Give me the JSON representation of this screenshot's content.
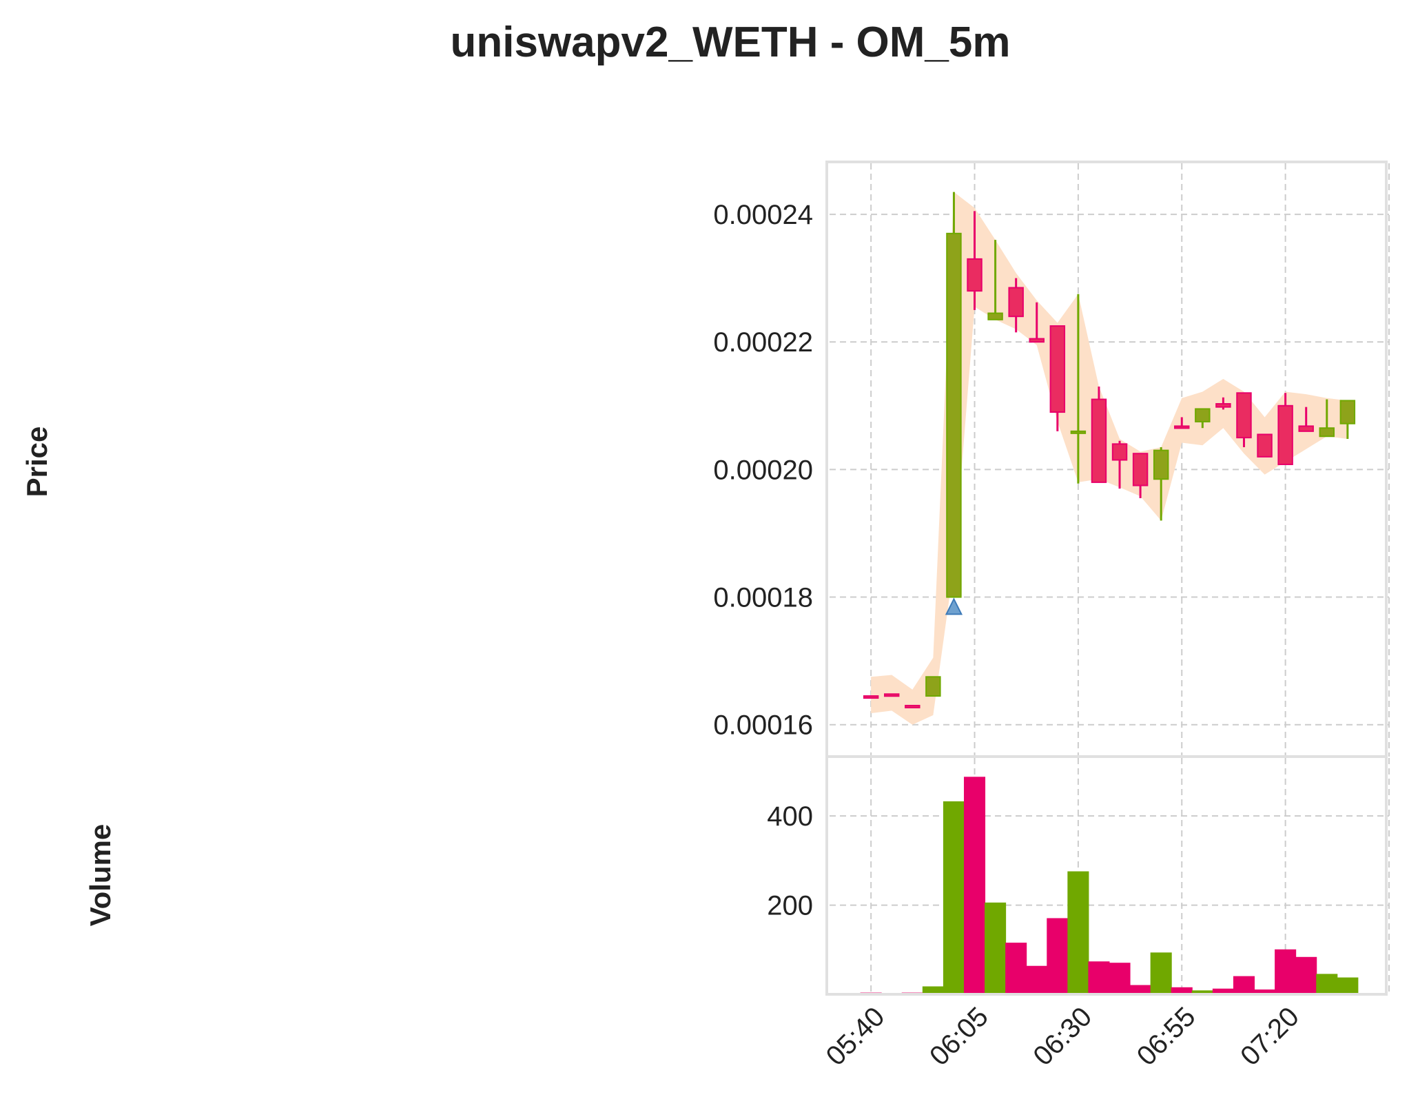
{
  "chart_data": {
    "type": "candlestick",
    "title": "uniswapv2_WETH - OM_5m",
    "colors": {
      "up": "#70a800",
      "up_body": "#8ea31a",
      "down": "#e8006a",
      "down_body": "#ea2c61",
      "band": "#fde0c8",
      "marker": "#6fa1cf",
      "grid": "#cccccc",
      "frame": "#e0e0e0"
    },
    "price_panel": {
      "ylabel": "Price",
      "ylim": [
        0.000155,
        0.000248
      ],
      "yticks": [
        0.00016,
        0.00018,
        0.0002,
        0.00022,
        0.00024
      ],
      "ytick_labels": [
        "0.00016",
        "0.00018",
        "0.00020",
        "0.00022",
        "0.00024"
      ]
    },
    "volume_panel": {
      "ylabel": "Volume",
      "ylim": [
        0,
        530
      ],
      "yticks": [
        200,
        400
      ],
      "ytick_labels": [
        "200",
        "400"
      ]
    },
    "xlim": [
      "05:30",
      "07:45"
    ],
    "xticks": [
      "05:40",
      "06:05",
      "06:30",
      "06:55",
      "07:20",
      "07:45"
    ],
    "xtick_labels": [
      "05:40",
      "06:05",
      "06:30",
      "06:55",
      "07:20",
      ""
    ],
    "candles": [
      {
        "time": "05:40",
        "open": 0.0001645,
        "high": 0.0001645,
        "low": 0.0001645,
        "close": 0.0001645,
        "volume": 3,
        "direction": "down"
      },
      {
        "time": "05:45",
        "open": 0.0001648,
        "high": 0.0001648,
        "low": 0.0001648,
        "close": 0.0001648,
        "volume": 0,
        "direction": "down"
      },
      {
        "time": "05:50",
        "open": 0.000163,
        "high": 0.000163,
        "low": 0.000163,
        "close": 0.000163,
        "volume": 3,
        "direction": "down"
      },
      {
        "time": "05:55",
        "open": 0.0001645,
        "high": 0.0001675,
        "low": 0.0001645,
        "close": 0.0001675,
        "volume": 17,
        "direction": "up"
      },
      {
        "time": "06:00",
        "open": 0.00018,
        "high": 0.0002435,
        "low": 0.00018,
        "close": 0.000237,
        "volume": 432,
        "direction": "up"
      },
      {
        "time": "06:05",
        "open": 0.000233,
        "high": 0.0002405,
        "low": 0.000225,
        "close": 0.000228,
        "volume": 487,
        "direction": "down"
      },
      {
        "time": "06:10",
        "open": 0.0002235,
        "high": 0.000236,
        "low": 0.0002235,
        "close": 0.0002245,
        "volume": 205,
        "direction": "up"
      },
      {
        "time": "06:15",
        "open": 0.0002285,
        "high": 0.00023,
        "low": 0.0002215,
        "close": 0.000224,
        "volume": 115,
        "direction": "down"
      },
      {
        "time": "06:20",
        "open": 0.0002205,
        "high": 0.0002262,
        "low": 0.00022,
        "close": 0.00022,
        "volume": 63,
        "direction": "down"
      },
      {
        "time": "06:25",
        "open": 0.0002225,
        "high": 0.0002225,
        "low": 0.000206,
        "close": 0.000209,
        "volume": 170,
        "direction": "down"
      },
      {
        "time": "06:30",
        "open": 0.000206,
        "high": 0.0002275,
        "low": 0.0001978,
        "close": 0.000206,
        "volume": 275,
        "direction": "up"
      },
      {
        "time": "06:35",
        "open": 0.000211,
        "high": 0.000213,
        "low": 0.000198,
        "close": 0.000198,
        "volume": 73,
        "direction": "down"
      },
      {
        "time": "06:40",
        "open": 0.000204,
        "high": 0.0002045,
        "low": 0.000197,
        "close": 0.0002015,
        "volume": 70,
        "direction": "down"
      },
      {
        "time": "06:45",
        "open": 0.0002025,
        "high": 0.0002025,
        "low": 0.0001955,
        "close": 0.0001975,
        "volume": 20,
        "direction": "down"
      },
      {
        "time": "06:50",
        "open": 0.0001985,
        "high": 0.0002035,
        "low": 0.000192,
        "close": 0.000203,
        "volume": 93,
        "direction": "up"
      },
      {
        "time": "06:55",
        "open": 0.0002068,
        "high": 0.0002082,
        "low": 0.0002065,
        "close": 0.0002065,
        "volume": 15,
        "direction": "down"
      },
      {
        "time": "07:00",
        "open": 0.0002075,
        "high": 0.0002095,
        "low": 0.0002065,
        "close": 0.0002095,
        "volume": 8,
        "direction": "up"
      },
      {
        "time": "07:05",
        "open": 0.0002103,
        "high": 0.0002113,
        "low": 0.0002094,
        "close": 0.0002098,
        "volume": 12,
        "direction": "down"
      },
      {
        "time": "07:10",
        "open": 0.000212,
        "high": 0.000212,
        "low": 0.0002035,
        "close": 0.000205,
        "volume": 40,
        "direction": "down"
      },
      {
        "time": "07:15",
        "open": 0.0002055,
        "high": 0.0002055,
        "low": 0.000202,
        "close": 0.000202,
        "volume": 10,
        "direction": "down"
      },
      {
        "time": "07:20",
        "open": 0.00021,
        "high": 0.000212,
        "low": 0.0002008,
        "close": 0.0002008,
        "volume": 100,
        "direction": "down"
      },
      {
        "time": "07:25",
        "open": 0.0002068,
        "high": 0.0002098,
        "low": 0.000206,
        "close": 0.000206,
        "volume": 83,
        "direction": "down"
      },
      {
        "time": "07:30",
        "open": 0.0002052,
        "high": 0.000211,
        "low": 0.0002052,
        "close": 0.0002065,
        "volume": 45,
        "direction": "up"
      },
      {
        "time": "07:35",
        "open": 0.0002072,
        "high": 0.0002108,
        "low": 0.0002048,
        "close": 0.0002108,
        "volume": 37,
        "direction": "up"
      }
    ],
    "band": [
      {
        "time": "05:40",
        "upper": 0.0001675,
        "lower": 0.0001618
      },
      {
        "time": "05:45",
        "upper": 0.0001678,
        "lower": 0.0001622
      },
      {
        "time": "05:50",
        "upper": 0.0001655,
        "lower": 0.00016
      },
      {
        "time": "05:55",
        "upper": 0.0001705,
        "lower": 0.0001615
      },
      {
        "time": "06:00",
        "upper": 0.0002435,
        "lower": 0.000185
      },
      {
        "time": "06:05",
        "upper": 0.000241,
        "lower": 0.0002255
      },
      {
        "time": "06:10",
        "upper": 0.000236,
        "lower": 0.0002235
      },
      {
        "time": "06:15",
        "upper": 0.0002308,
        "lower": 0.000222
      },
      {
        "time": "06:20",
        "upper": 0.0002265,
        "lower": 0.0002195
      },
      {
        "time": "06:25",
        "upper": 0.000223,
        "lower": 0.0002075
      },
      {
        "time": "06:30",
        "upper": 0.0002275,
        "lower": 0.000198
      },
      {
        "time": "06:35",
        "upper": 0.000213,
        "lower": 0.0001985
      },
      {
        "time": "06:40",
        "upper": 0.0002048,
        "lower": 0.0001972
      },
      {
        "time": "06:45",
        "upper": 0.0002028,
        "lower": 0.0001958
      },
      {
        "time": "06:50",
        "upper": 0.0002035,
        "lower": 0.000192
      },
      {
        "time": "06:55",
        "upper": 0.0002112,
        "lower": 0.0002042
      },
      {
        "time": "07:00",
        "upper": 0.0002122,
        "lower": 0.0002038
      },
      {
        "time": "07:05",
        "upper": 0.0002142,
        "lower": 0.0002065
      },
      {
        "time": "07:10",
        "upper": 0.0002122,
        "lower": 0.0002025
      },
      {
        "time": "07:15",
        "upper": 0.0002082,
        "lower": 0.0001992
      },
      {
        "time": "07:20",
        "upper": 0.0002122,
        "lower": 0.0002012
      },
      {
        "time": "07:25",
        "upper": 0.0002118,
        "lower": 0.0002032
      },
      {
        "time": "07:30",
        "upper": 0.0002112,
        "lower": 0.0002052
      },
      {
        "time": "07:35",
        "upper": 0.0002108,
        "lower": 0.0002048
      }
    ],
    "markers": [
      {
        "time": "06:00",
        "price": 0.0001785,
        "shape": "triangle-up"
      }
    ]
  }
}
